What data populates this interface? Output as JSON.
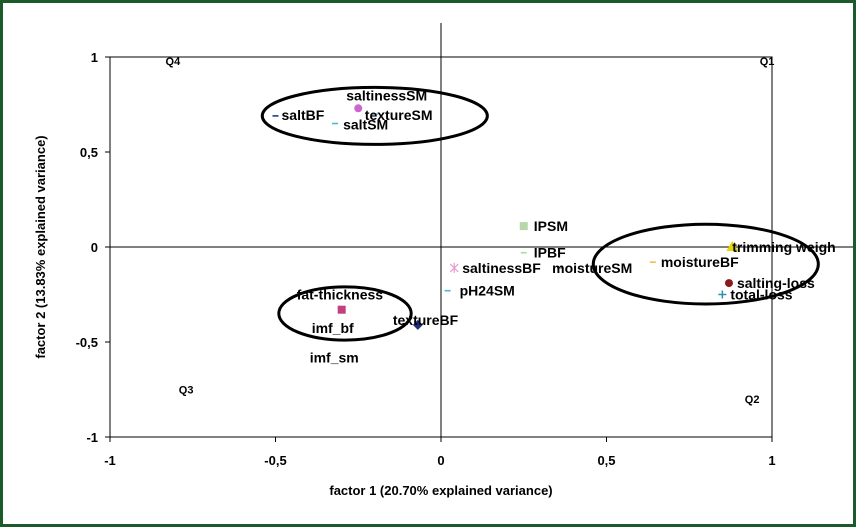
{
  "chart_data": {
    "type": "scatter",
    "xlabel": "factor 1 (20.70% explained variance)",
    "ylabel": "factor 2 (13.83% explained variance)",
    "xlim": [
      -1,
      1
    ],
    "ylim": [
      -1,
      1
    ],
    "x_ticks": [
      "-1",
      "-0,5",
      "0",
      "0,5",
      "1"
    ],
    "y_ticks": [
      "1",
      "0,5",
      "0",
      "-0,5",
      "-1"
    ],
    "grid": false,
    "zero_lines": true,
    "quadrants": [
      "Q1",
      "Q2",
      "Q3",
      "Q4"
    ],
    "points": [
      {
        "name": "saltinessSM",
        "x": -0.25,
        "y": 0.73,
        "color": "#cc66cc",
        "marker": "circle"
      },
      {
        "name": "saltBF",
        "x": -0.5,
        "y": 0.69,
        "color": "#1f3c88",
        "marker": "dash"
      },
      {
        "name": "saltSM",
        "x": -0.32,
        "y": 0.65,
        "color": "#4db8d4",
        "marker": "dash"
      },
      {
        "name": "textureSM",
        "x": -0.2,
        "y": 0.7,
        "color": "#4db8d4",
        "marker": "dash"
      },
      {
        "name": "IPSM",
        "x": 0.25,
        "y": 0.11,
        "color": "#b6d7a8",
        "marker": "square"
      },
      {
        "name": "IPBF",
        "x": 0.25,
        "y": -0.03,
        "color": "#b6d7a8",
        "marker": "dash"
      },
      {
        "name": "saltinessBF",
        "x": 0.04,
        "y": -0.11,
        "color": "#e89ccf",
        "marker": "star"
      },
      {
        "name": "moistureSM",
        "x": 0.36,
        "y": -0.11,
        "color": "#888888",
        "marker": "dash"
      },
      {
        "name": "moistureBF",
        "x": 0.64,
        "y": -0.08,
        "color": "#f0c040",
        "marker": "dash"
      },
      {
        "name": "trimming weigh",
        "x": 0.88,
        "y": 0.0,
        "color": "#e8d400",
        "marker": "triangle"
      },
      {
        "name": "salting-loss",
        "x": 0.87,
        "y": -0.19,
        "color": "#8b1a1a",
        "marker": "circle"
      },
      {
        "name": "total-loss",
        "x": 0.85,
        "y": -0.25,
        "color": "#2f8fb5",
        "marker": "plus"
      },
      {
        "name": "pH24SM",
        "x": 0.02,
        "y": -0.23,
        "color": "#4db8d4",
        "marker": "dash"
      },
      {
        "name": "textureBF",
        "x": -0.07,
        "y": -0.41,
        "color": "#1f2f7a",
        "marker": "diamond"
      },
      {
        "name": "fat-thickness",
        "x": -0.3,
        "y": -0.33,
        "color": "#c04080",
        "marker": "square"
      },
      {
        "name": "imf_bf",
        "x": -0.3,
        "y": -0.38,
        "color": "#888888",
        "marker": "none"
      },
      {
        "name": "imf_sm",
        "x": -0.3,
        "y": -0.44,
        "color": "#888888",
        "marker": "none"
      }
    ],
    "clusters": [
      {
        "members": [
          "saltinessSM",
          "saltBF",
          "saltSM",
          "textureSM"
        ],
        "cx": -0.2,
        "cy": 0.69,
        "rx": 0.34,
        "ry": 0.15
      },
      {
        "members": [
          "IPSM",
          "IPBF",
          "moistureBF",
          "trimming weigh",
          "salting-loss",
          "total-loss"
        ],
        "cx": 0.8,
        "cy": -0.09,
        "rx": 0.34,
        "ry": 0.21
      },
      {
        "members": [
          "fat-thickness",
          "imf_bf",
          "imf_sm",
          "textureBF"
        ],
        "cx": -0.29,
        "cy": -0.35,
        "rx": 0.2,
        "ry": 0.14
      }
    ]
  }
}
